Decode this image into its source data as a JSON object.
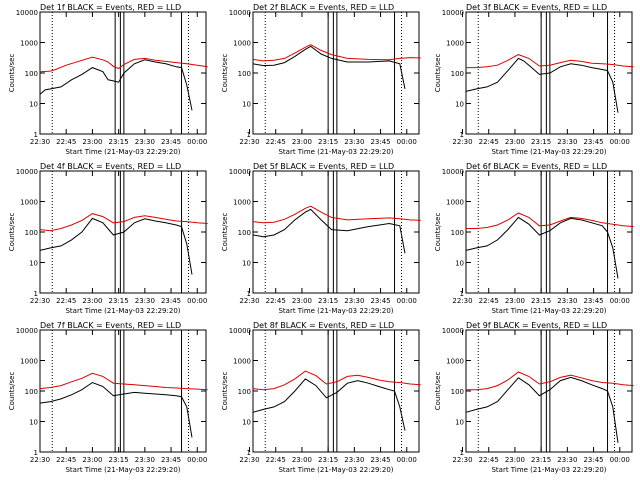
{
  "chart_data": {
    "type": "line",
    "ylabel": "Counts/sec",
    "xlabel": "Start Time (21-May-03 22:29:20)",
    "yscale": "log",
    "ylim": [
      1,
      10000
    ],
    "xlim": [
      "22:30",
      "00:05"
    ],
    "y_ticks": [
      "1",
      "10",
      "100",
      "1000",
      "10000"
    ],
    "x_ticks": [
      "22:30",
      "22:45",
      "23:00",
      "23:15",
      "23:30",
      "23:45",
      "00:00"
    ],
    "dotted_markers": [
      "22:37",
      "23:55"
    ],
    "solid_markers": [
      "23:13",
      "23:16",
      "23:18",
      "23:51"
    ],
    "panels": [
      {
        "title": "Det 1f BLACK = Events, RED = LLD",
        "tick_offset_min": 0,
        "red": [
          [
            22.5,
            110
          ],
          [
            22.6,
            115
          ],
          [
            22.65,
            130
          ],
          [
            22.75,
            180
          ],
          [
            23.0,
            330
          ],
          [
            23.1,
            270
          ],
          [
            23.15,
            230
          ],
          [
            23.2,
            165
          ],
          [
            23.25,
            140
          ],
          [
            23.3,
            190
          ],
          [
            23.4,
            280
          ],
          [
            23.5,
            300
          ],
          [
            23.6,
            260
          ],
          [
            23.7,
            240
          ],
          [
            23.8,
            220
          ],
          [
            23.9,
            200
          ],
          [
            24.0,
            180
          ],
          [
            24.1,
            160
          ]
        ],
        "black": [
          [
            22.5,
            20
          ],
          [
            22.55,
            28
          ],
          [
            22.6,
            30
          ],
          [
            22.7,
            35
          ],
          [
            22.8,
            60
          ],
          [
            22.9,
            90
          ],
          [
            23.0,
            150
          ],
          [
            23.1,
            110
          ],
          [
            23.15,
            60
          ],
          [
            23.2,
            55
          ],
          [
            23.25,
            50
          ],
          [
            23.3,
            100
          ],
          [
            23.4,
            200
          ],
          [
            23.5,
            270
          ],
          [
            23.6,
            230
          ],
          [
            23.7,
            200
          ],
          [
            23.8,
            160
          ],
          [
            23.85,
            150
          ],
          [
            23.9,
            40
          ],
          [
            23.95,
            6
          ]
        ]
      },
      {
        "title": "Det 2f BLACK = Events, RED = LLD",
        "tick_offset_min": -2,
        "red": [
          [
            22.5,
            280
          ],
          [
            22.6,
            250
          ],
          [
            22.7,
            260
          ],
          [
            22.8,
            300
          ],
          [
            22.9,
            450
          ],
          [
            23.0,
            700
          ],
          [
            23.05,
            850
          ],
          [
            23.15,
            550
          ],
          [
            23.25,
            400
          ],
          [
            23.4,
            300
          ],
          [
            23.6,
            280
          ],
          [
            23.8,
            270
          ],
          [
            23.9,
            300
          ],
          [
            24.0,
            320
          ],
          [
            24.1,
            310
          ]
        ],
        "black": [
          [
            22.5,
            200
          ],
          [
            22.6,
            175
          ],
          [
            22.7,
            180
          ],
          [
            22.8,
            220
          ],
          [
            22.9,
            350
          ],
          [
            23.0,
            600
          ],
          [
            23.05,
            750
          ],
          [
            23.15,
            420
          ],
          [
            23.25,
            300
          ],
          [
            23.4,
            230
          ],
          [
            23.6,
            230
          ],
          [
            23.8,
            250
          ],
          [
            23.9,
            200
          ],
          [
            23.95,
            30
          ]
        ]
      },
      {
        "title": "Det 3f BLACK = Events, RED = LLD",
        "tick_offset_min": -2,
        "red": [
          [
            22.5,
            150
          ],
          [
            22.6,
            150
          ],
          [
            22.7,
            160
          ],
          [
            22.8,
            180
          ],
          [
            22.9,
            260
          ],
          [
            23.0,
            400
          ],
          [
            23.1,
            300
          ],
          [
            23.2,
            170
          ],
          [
            23.3,
            180
          ],
          [
            23.4,
            220
          ],
          [
            23.5,
            260
          ],
          [
            23.6,
            240
          ],
          [
            23.7,
            210
          ],
          [
            23.8,
            200
          ],
          [
            23.9,
            190
          ],
          [
            24.0,
            170
          ],
          [
            24.1,
            160
          ]
        ],
        "black": [
          [
            22.5,
            25
          ],
          [
            22.6,
            30
          ],
          [
            22.7,
            35
          ],
          [
            22.8,
            50
          ],
          [
            22.9,
            120
          ],
          [
            23.0,
            300
          ],
          [
            23.05,
            250
          ],
          [
            23.1,
            180
          ],
          [
            23.2,
            90
          ],
          [
            23.3,
            100
          ],
          [
            23.4,
            160
          ],
          [
            23.5,
            200
          ],
          [
            23.6,
            180
          ],
          [
            23.7,
            150
          ],
          [
            23.8,
            130
          ],
          [
            23.85,
            120
          ],
          [
            23.9,
            50
          ],
          [
            23.95,
            5
          ]
        ]
      },
      {
        "title": "Det 4f BLACK = Events, RED = LLD",
        "tick_offset_min": 0,
        "red": [
          [
            22.5,
            120
          ],
          [
            22.6,
            110
          ],
          [
            22.7,
            130
          ],
          [
            22.8,
            170
          ],
          [
            22.9,
            240
          ],
          [
            23.0,
            400
          ],
          [
            23.1,
            320
          ],
          [
            23.2,
            200
          ],
          [
            23.3,
            220
          ],
          [
            23.4,
            300
          ],
          [
            23.5,
            340
          ],
          [
            23.6,
            300
          ],
          [
            23.7,
            260
          ],
          [
            23.8,
            230
          ],
          [
            23.9,
            220
          ],
          [
            24.0,
            200
          ],
          [
            24.1,
            190
          ]
        ],
        "black": [
          [
            22.5,
            25
          ],
          [
            22.6,
            30
          ],
          [
            22.7,
            35
          ],
          [
            22.8,
            55
          ],
          [
            22.9,
            100
          ],
          [
            23.0,
            280
          ],
          [
            23.1,
            200
          ],
          [
            23.2,
            80
          ],
          [
            23.3,
            100
          ],
          [
            23.4,
            200
          ],
          [
            23.5,
            270
          ],
          [
            23.6,
            230
          ],
          [
            23.7,
            200
          ],
          [
            23.8,
            170
          ],
          [
            23.85,
            150
          ],
          [
            23.9,
            40
          ],
          [
            23.95,
            4
          ]
        ]
      },
      {
        "title": "Det 5f BLACK = Events, RED = LLD",
        "tick_offset_min": -2,
        "red": [
          [
            22.5,
            220
          ],
          [
            22.6,
            200
          ],
          [
            22.7,
            210
          ],
          [
            22.8,
            260
          ],
          [
            22.9,
            380
          ],
          [
            23.0,
            600
          ],
          [
            23.05,
            700
          ],
          [
            23.15,
            450
          ],
          [
            23.25,
            300
          ],
          [
            23.4,
            250
          ],
          [
            23.6,
            270
          ],
          [
            23.8,
            290
          ],
          [
            23.9,
            270
          ],
          [
            24.0,
            250
          ],
          [
            24.1,
            240
          ]
        ],
        "black": [
          [
            22.5,
            80
          ],
          [
            22.6,
            70
          ],
          [
            22.7,
            80
          ],
          [
            22.8,
            120
          ],
          [
            22.9,
            250
          ],
          [
            23.0,
            450
          ],
          [
            23.05,
            550
          ],
          [
            23.15,
            250
          ],
          [
            23.25,
            120
          ],
          [
            23.4,
            110
          ],
          [
            23.6,
            150
          ],
          [
            23.8,
            190
          ],
          [
            23.9,
            160
          ],
          [
            23.95,
            20
          ]
        ]
      },
      {
        "title": "Det 6f BLACK = Events, RED = LLD",
        "tick_offset_min": -2,
        "red": [
          [
            22.5,
            130
          ],
          [
            22.6,
            130
          ],
          [
            22.7,
            140
          ],
          [
            22.8,
            170
          ],
          [
            22.9,
            250
          ],
          [
            23.0,
            420
          ],
          [
            23.1,
            300
          ],
          [
            23.2,
            160
          ],
          [
            23.3,
            170
          ],
          [
            23.4,
            230
          ],
          [
            23.5,
            300
          ],
          [
            23.6,
            280
          ],
          [
            23.7,
            240
          ],
          [
            23.8,
            200
          ],
          [
            23.9,
            180
          ],
          [
            24.0,
            160
          ],
          [
            24.1,
            150
          ]
        ],
        "black": [
          [
            22.5,
            25
          ],
          [
            22.6,
            30
          ],
          [
            22.7,
            35
          ],
          [
            22.8,
            55
          ],
          [
            22.9,
            120
          ],
          [
            23.0,
            300
          ],
          [
            23.1,
            180
          ],
          [
            23.2,
            80
          ],
          [
            23.3,
            110
          ],
          [
            23.4,
            200
          ],
          [
            23.5,
            280
          ],
          [
            23.6,
            250
          ],
          [
            23.7,
            200
          ],
          [
            23.8,
            160
          ],
          [
            23.85,
            100
          ],
          [
            23.9,
            30
          ],
          [
            23.95,
            3
          ]
        ]
      },
      {
        "title": "Det 7f BLACK = Events, RED = LLD",
        "tick_offset_min": 0,
        "red": [
          [
            22.5,
            120
          ],
          [
            22.6,
            130
          ],
          [
            22.7,
            150
          ],
          [
            22.8,
            200
          ],
          [
            22.9,
            260
          ],
          [
            23.0,
            380
          ],
          [
            23.1,
            300
          ],
          [
            23.2,
            180
          ],
          [
            23.3,
            170
          ],
          [
            23.4,
            160
          ],
          [
            23.5,
            150
          ],
          [
            23.6,
            140
          ],
          [
            23.7,
            130
          ],
          [
            23.8,
            125
          ],
          [
            23.9,
            120
          ],
          [
            24.0,
            115
          ],
          [
            24.1,
            110
          ]
        ],
        "black": [
          [
            22.5,
            40
          ],
          [
            22.6,
            45
          ],
          [
            22.7,
            55
          ],
          [
            22.8,
            75
          ],
          [
            22.9,
            110
          ],
          [
            23.0,
            190
          ],
          [
            23.1,
            140
          ],
          [
            23.2,
            70
          ],
          [
            23.3,
            80
          ],
          [
            23.4,
            90
          ],
          [
            23.5,
            85
          ],
          [
            23.6,
            80
          ],
          [
            23.7,
            75
          ],
          [
            23.8,
            70
          ],
          [
            23.85,
            65
          ],
          [
            23.9,
            30
          ],
          [
            23.95,
            3
          ]
        ]
      },
      {
        "title": "Det 8f BLACK = Events, RED = LLD",
        "tick_offset_min": -2,
        "red": [
          [
            22.5,
            120
          ],
          [
            22.6,
            110
          ],
          [
            22.7,
            120
          ],
          [
            22.8,
            160
          ],
          [
            22.9,
            250
          ],
          [
            23.0,
            450
          ],
          [
            23.1,
            320
          ],
          [
            23.2,
            170
          ],
          [
            23.3,
            200
          ],
          [
            23.4,
            300
          ],
          [
            23.5,
            330
          ],
          [
            23.6,
            280
          ],
          [
            23.7,
            230
          ],
          [
            23.8,
            200
          ],
          [
            23.9,
            190
          ],
          [
            24.0,
            170
          ],
          [
            24.1,
            160
          ]
        ],
        "black": [
          [
            22.5,
            20
          ],
          [
            22.6,
            25
          ],
          [
            22.7,
            30
          ],
          [
            22.8,
            45
          ],
          [
            22.9,
            100
          ],
          [
            23.0,
            250
          ],
          [
            23.1,
            150
          ],
          [
            23.2,
            60
          ],
          [
            23.3,
            90
          ],
          [
            23.4,
            180
          ],
          [
            23.5,
            220
          ],
          [
            23.6,
            180
          ],
          [
            23.7,
            140
          ],
          [
            23.8,
            110
          ],
          [
            23.85,
            100
          ],
          [
            23.9,
            30
          ],
          [
            23.95,
            5
          ]
        ]
      },
      {
        "title": "Det 9f BLACK = Events, RED = LLD",
        "tick_offset_min": -2,
        "red": [
          [
            22.5,
            110
          ],
          [
            22.6,
            110
          ],
          [
            22.7,
            120
          ],
          [
            22.8,
            150
          ],
          [
            22.9,
            230
          ],
          [
            23.0,
            420
          ],
          [
            23.1,
            300
          ],
          [
            23.2,
            170
          ],
          [
            23.3,
            200
          ],
          [
            23.4,
            280
          ],
          [
            23.5,
            330
          ],
          [
            23.6,
            270
          ],
          [
            23.7,
            220
          ],
          [
            23.8,
            190
          ],
          [
            23.9,
            180
          ],
          [
            24.0,
            160
          ],
          [
            24.1,
            150
          ]
        ],
        "black": [
          [
            22.5,
            20
          ],
          [
            22.6,
            25
          ],
          [
            22.7,
            30
          ],
          [
            22.8,
            45
          ],
          [
            22.9,
            110
          ],
          [
            23.0,
            270
          ],
          [
            23.1,
            160
          ],
          [
            23.2,
            70
          ],
          [
            23.3,
            110
          ],
          [
            23.4,
            220
          ],
          [
            23.5,
            280
          ],
          [
            23.6,
            220
          ],
          [
            23.7,
            160
          ],
          [
            23.8,
            120
          ],
          [
            23.85,
            100
          ],
          [
            23.9,
            30
          ],
          [
            23.95,
            2
          ]
        ]
      }
    ]
  }
}
